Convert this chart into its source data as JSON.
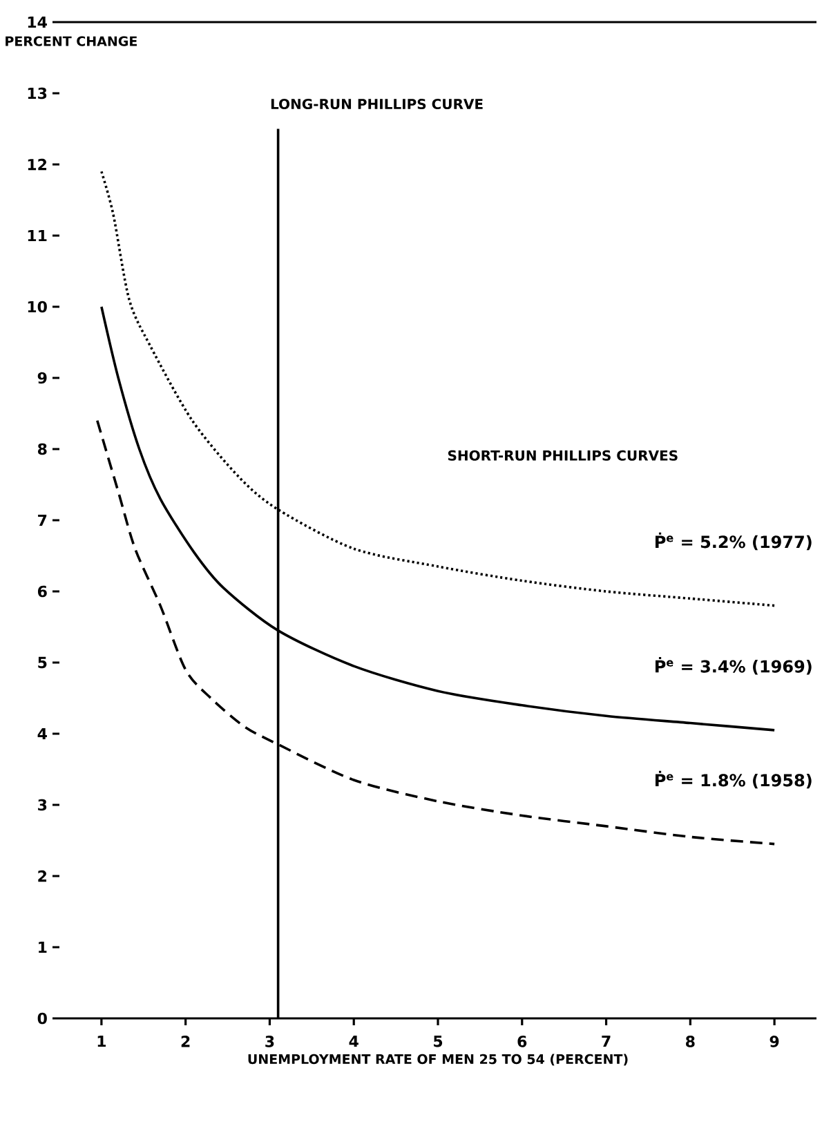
{
  "chart_data": {
    "type": "line",
    "ylabel": "PERCENT CHANGE",
    "xlabel": "UNEMPLOYMENT  RATE OF MEN 25 TO 54 (PERCENT)",
    "xlim": [
      0.5,
      9.5
    ],
    "ylim": [
      0,
      14
    ],
    "xticks": [
      1,
      2,
      3,
      4,
      5,
      6,
      7,
      8,
      9
    ],
    "yticks": [
      0,
      1,
      2,
      3,
      4,
      5,
      6,
      7,
      8,
      9,
      10,
      11,
      12,
      13,
      14
    ],
    "grid": false,
    "legend": false,
    "marker": "none",
    "annotations": [
      "SHORT-RUN PHILLIPS CURVES"
    ],
    "series": [
      {
        "name": "LONG-RUN PHILLIPS CURVE",
        "color": "#000000",
        "line_style": "solid",
        "x": [
          3.1,
          3.1
        ],
        "values": [
          0,
          12.5
        ]
      },
      {
        "name": "Ṗ$^{e}$ = 5.2% (1977)",
        "color": "#000000",
        "line_style": "dotted",
        "x": [
          1,
          1.14,
          1.33,
          1.58,
          2.08,
          2.64,
          3.1,
          4,
          5,
          6,
          7,
          8,
          9
        ],
        "values": [
          11.9,
          11.3,
          10.1,
          9.45,
          8.4,
          7.6,
          7.15,
          6.6,
          6.35,
          6.15,
          6.0,
          5.9,
          5.8
        ]
      },
      {
        "name": "Ṗ$^{e}$ = 3.4% (1969)",
        "color": "#000000",
        "line_style": "solid",
        "x": [
          1,
          1.2,
          1.45,
          1.7,
          2.1,
          2.45,
          3.1,
          4,
          5,
          6,
          7,
          8,
          9
        ],
        "values": [
          10.0,
          9.0,
          8.0,
          7.3,
          6.55,
          6.05,
          5.45,
          4.95,
          4.6,
          4.4,
          4.25,
          4.15,
          4.05
        ]
      },
      {
        "name": "Ṗ$^{e}$ = 1.8% (1958)",
        "color": "#000000",
        "line_style": "dashed",
        "x": [
          0.95,
          1.2,
          1.4,
          1.7,
          2.0,
          2.3,
          2.7,
          3.1,
          4,
          5,
          6,
          7,
          8,
          9
        ],
        "values": [
          8.4,
          7.4,
          6.6,
          5.8,
          4.9,
          4.5,
          4.1,
          3.85,
          3.35,
          3.05,
          2.85,
          2.7,
          2.55,
          2.45
        ]
      }
    ]
  }
}
